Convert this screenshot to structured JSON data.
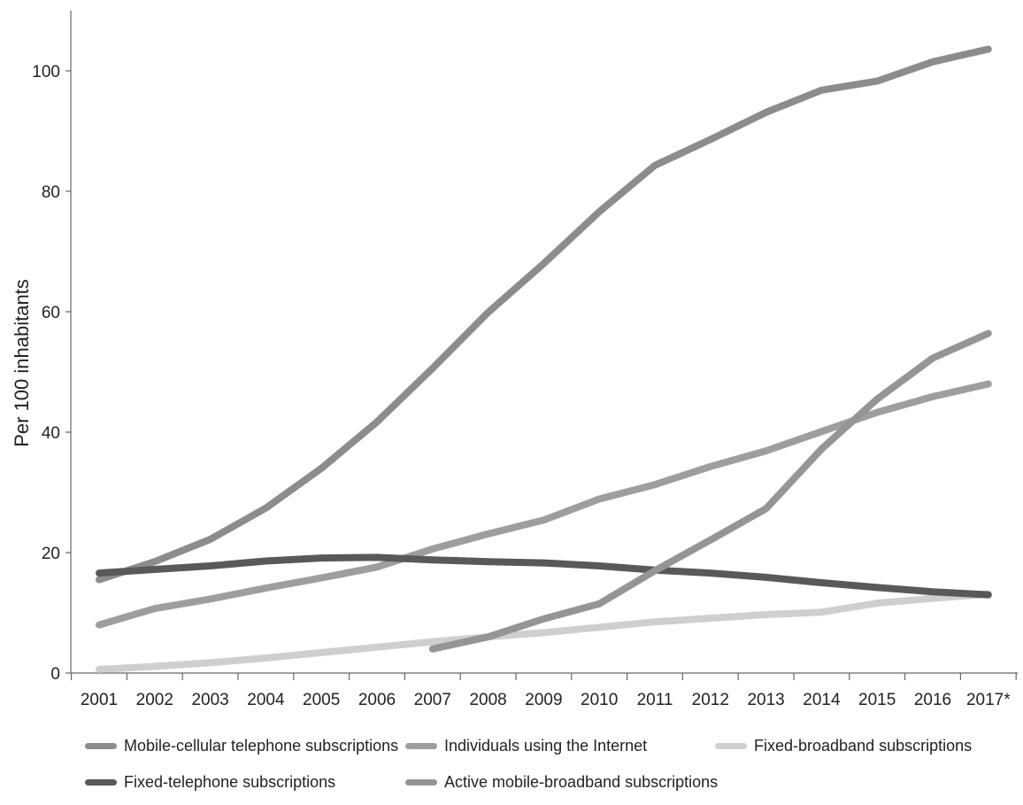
{
  "chart_data": {
    "type": "line",
    "title": "",
    "xlabel": "",
    "ylabel": "Per 100 inhabitants",
    "categories": [
      "2001",
      "2002",
      "2003",
      "2004",
      "2005",
      "2006",
      "2007",
      "2008",
      "2009",
      "2010",
      "2011",
      "2012",
      "2013",
      "2014",
      "2015",
      "2016",
      "2017*"
    ],
    "ylim": [
      0,
      110
    ],
    "yticks": [
      0,
      20,
      40,
      60,
      80,
      100
    ],
    "grid": false,
    "legend_position": "bottom",
    "series": [
      {
        "name": "Mobile-cellular telephone subscriptions",
        "color": "#8c8c8c",
        "values": [
          15.5,
          18.5,
          22.2,
          27.4,
          34.0,
          41.7,
          50.6,
          59.9,
          68.0,
          76.6,
          84.3,
          88.6,
          93.1,
          96.8,
          98.3,
          101.5,
          103.6
        ]
      },
      {
        "name": "Individuals using the Internet",
        "color": "#9e9e9e",
        "values": [
          8.0,
          10.7,
          12.3,
          14.1,
          15.8,
          17.6,
          20.6,
          23.1,
          25.4,
          28.9,
          31.3,
          34.3,
          36.9,
          40.1,
          43.3,
          45.9,
          48.0
        ]
      },
      {
        "name": "Fixed-broadband subscriptions",
        "color": "#cfcfcf",
        "values": [
          0.6,
          1.1,
          1.7,
          2.5,
          3.4,
          4.3,
          5.2,
          6.0,
          6.7,
          7.6,
          8.5,
          9.1,
          9.7,
          10.1,
          11.6,
          12.4,
          13.1
        ]
      },
      {
        "name": "Fixed-telephone subscriptions",
        "color": "#595959",
        "values": [
          16.6,
          17.2,
          17.8,
          18.6,
          19.1,
          19.2,
          18.8,
          18.5,
          18.3,
          17.8,
          17.1,
          16.6,
          15.9,
          15.0,
          14.2,
          13.5,
          13.0
        ]
      },
      {
        "name": "Active mobile-broadband subscriptions",
        "color": "#959595",
        "values": [
          null,
          null,
          null,
          null,
          null,
          null,
          4.0,
          6.0,
          9.0,
          11.5,
          17.0,
          22.1,
          27.3,
          37.2,
          45.5,
          52.3,
          56.4
        ]
      }
    ]
  }
}
